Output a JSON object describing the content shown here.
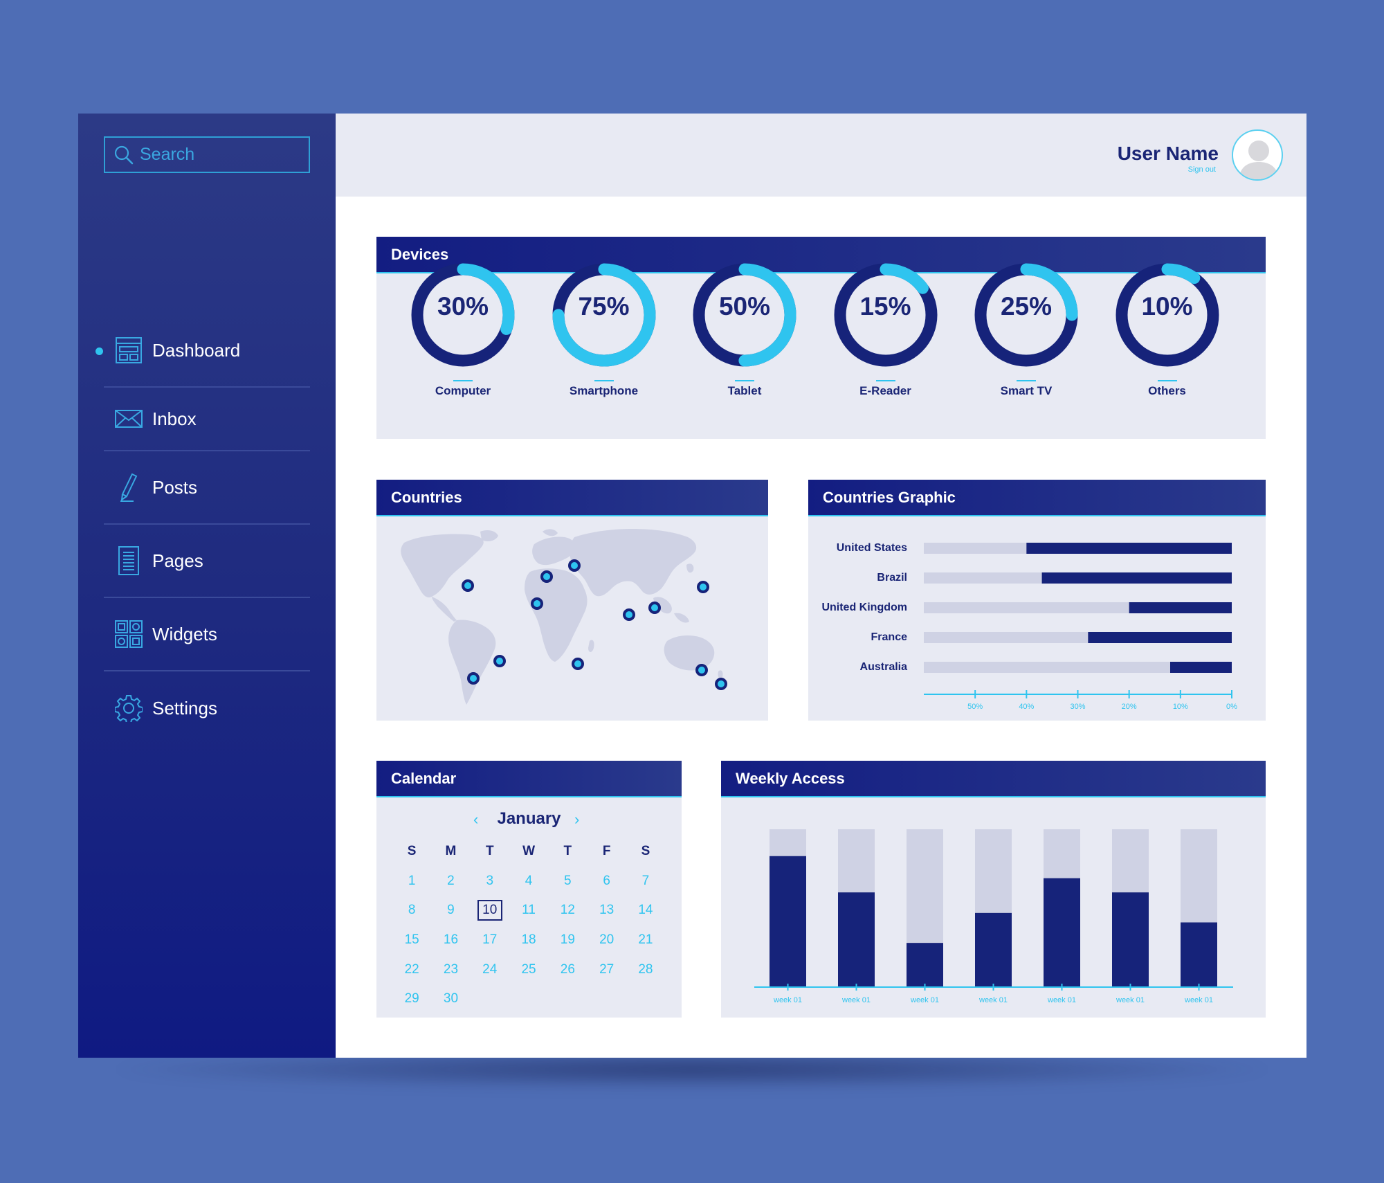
{
  "search": {
    "placeholder": "Search"
  },
  "sidebar": {
    "items": [
      {
        "label": "Dashboard",
        "icon": "dashboard-icon",
        "active": true
      },
      {
        "label": "Inbox",
        "icon": "mail-icon",
        "active": false
      },
      {
        "label": "Posts",
        "icon": "pencil-icon",
        "active": false
      },
      {
        "label": "Pages",
        "icon": "page-icon",
        "active": false
      },
      {
        "label": "Widgets",
        "icon": "widgets-icon",
        "active": false
      },
      {
        "label": "Settings",
        "icon": "gear-icon",
        "active": false
      }
    ]
  },
  "header": {
    "user_name": "User Name",
    "sign_out": "Sign out"
  },
  "devices": {
    "title": "Devices",
    "items": [
      {
        "label": "Computer",
        "pct_label": "30%",
        "value": 30
      },
      {
        "label": "Smartphone",
        "pct_label": "75%",
        "value": 75
      },
      {
        "label": "Tablet",
        "pct_label": "50%",
        "value": 50
      },
      {
        "label": "E-Reader",
        "pct_label": "15%",
        "value": 15
      },
      {
        "label": "Smart TV",
        "pct_label": "25%",
        "value": 25
      },
      {
        "label": "Others",
        "pct_label": "10%",
        "value": 10
      }
    ]
  },
  "countries": {
    "title": "Countries"
  },
  "countries_graphic": {
    "title": "Countries Graphic"
  },
  "calendar": {
    "title": "Calendar",
    "month": "January",
    "day_headers": [
      "S",
      "M",
      "T",
      "W",
      "T",
      "F",
      "S"
    ],
    "days": [
      "1",
      "2",
      "3",
      "4",
      "5",
      "6",
      "7",
      "8",
      "9",
      "10",
      "11",
      "12",
      "13",
      "14",
      "15",
      "16",
      "17",
      "18",
      "19",
      "20",
      "21",
      "22",
      "23",
      "24",
      "25",
      "26",
      "27",
      "28",
      "29",
      "30"
    ],
    "selected": "10"
  },
  "weekly": {
    "title": "Weekly Access"
  },
  "colors": {
    "accent": "#2fc4ef",
    "navy": "#1a2575",
    "track": "#cfd2e4",
    "background": "#4e6db5"
  },
  "chart_data": [
    {
      "type": "bar",
      "orientation": "horizontal",
      "categories": [
        "United States",
        "Brazil",
        "United Kingdom",
        "France",
        "Australia"
      ],
      "values": [
        40,
        37,
        20,
        28,
        12
      ],
      "xticks": [
        "50%",
        "40%",
        "30%",
        "20%",
        "10%",
        "0%"
      ],
      "xlim": [
        60,
        0
      ],
      "grid": false
    },
    {
      "type": "bar",
      "categories": [
        "week 01",
        "week 01",
        "week 01",
        "week 01",
        "week 01",
        "week 01",
        "week 01"
      ],
      "values": [
        83,
        60,
        28,
        47,
        69,
        60,
        41
      ],
      "ylim": [
        0,
        100
      ],
      "grid": false
    }
  ]
}
